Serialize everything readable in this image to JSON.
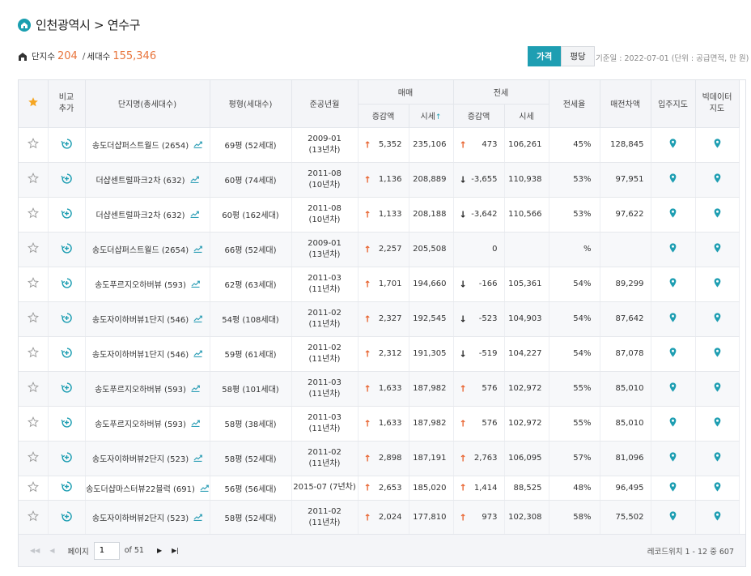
{
  "header": {
    "title": "인천광역시 > 연수구",
    "complex_label": "단지수",
    "complex_count": "204",
    "separator": "/",
    "household_label": "세대수",
    "household_count": "155,346"
  },
  "toggle": {
    "price_label": "가격",
    "pyeong_label": "평당",
    "active": "가격"
  },
  "basis_text": "기준일 : 2022-07-01 (단위 : 공급면적, 만 원)",
  "table": {
    "headers": {
      "compare_1": "비교",
      "compare_2": "추가",
      "name": "단지명(총세대수)",
      "size": "평형(세대수)",
      "completion": "준공년월",
      "sale_group": "매매",
      "lease_group": "전세",
      "sale_change": "증감액",
      "sale_price": "시세",
      "sale_sort_arrow": "↑",
      "lease_change": "증감액",
      "lease_price": "시세",
      "lease_rate": "전세율",
      "gap": "매전차액",
      "move_in_map": "입주지도",
      "bigdata_1": "빅데이터",
      "bigdata_2": "지도"
    },
    "rows": [
      {
        "name": "송도더샵퍼스트월드 (2654)",
        "size": "69평 (52세대)",
        "year": "2009-01",
        "age": "(13년차)",
        "sale_dir": "up",
        "sale_change": "5,352",
        "sale_price": "235,106",
        "lease_dir": "up",
        "lease_change": "473",
        "lease_price": "106,261",
        "rate": "45%",
        "gap": "128,845"
      },
      {
        "name": "더샵센트럴파크2차 (632)",
        "size": "60평 (74세대)",
        "year": "2011-08",
        "age": "(10년차)",
        "sale_dir": "up",
        "sale_change": "1,136",
        "sale_price": "208,889",
        "lease_dir": "down",
        "lease_change": "-3,655",
        "lease_price": "110,938",
        "rate": "53%",
        "gap": "97,951"
      },
      {
        "name": "더샵센트럴파크2차 (632)",
        "size": "60평 (162세대)",
        "year": "2011-08",
        "age": "(10년차)",
        "sale_dir": "up",
        "sale_change": "1,133",
        "sale_price": "208,188",
        "lease_dir": "down",
        "lease_change": "-3,642",
        "lease_price": "110,566",
        "rate": "53%",
        "gap": "97,622"
      },
      {
        "name": "송도더샵퍼스트월드 (2654)",
        "size": "66평 (52세대)",
        "year": "2009-01",
        "age": "(13년차)",
        "sale_dir": "up",
        "sale_change": "2,257",
        "sale_price": "205,508",
        "lease_dir": "",
        "lease_change": "0",
        "lease_price": "",
        "rate": "%",
        "gap": ""
      },
      {
        "name": "송도푸르지오하버뷰 (593)",
        "size": "62평 (63세대)",
        "year": "2011-03",
        "age": "(11년차)",
        "sale_dir": "up",
        "sale_change": "1,701",
        "sale_price": "194,660",
        "lease_dir": "down",
        "lease_change": "-166",
        "lease_price": "105,361",
        "rate": "54%",
        "gap": "89,299"
      },
      {
        "name": "송도자이하버뷰1단지 (546)",
        "size": "54평 (108세대)",
        "year": "2011-02",
        "age": "(11년차)",
        "sale_dir": "up",
        "sale_change": "2,327",
        "sale_price": "192,545",
        "lease_dir": "down",
        "lease_change": "-523",
        "lease_price": "104,903",
        "rate": "54%",
        "gap": "87,642"
      },
      {
        "name": "송도자이하버뷰1단지 (546)",
        "size": "59평 (61세대)",
        "year": "2011-02",
        "age": "(11년차)",
        "sale_dir": "up",
        "sale_change": "2,312",
        "sale_price": "191,305",
        "lease_dir": "down",
        "lease_change": "-519",
        "lease_price": "104,227",
        "rate": "54%",
        "gap": "87,078"
      },
      {
        "name": "송도푸르지오하버뷰 (593)",
        "size": "58평 (101세대)",
        "year": "2011-03",
        "age": "(11년차)",
        "sale_dir": "up",
        "sale_change": "1,633",
        "sale_price": "187,982",
        "lease_dir": "up",
        "lease_change": "576",
        "lease_price": "102,972",
        "rate": "55%",
        "gap": "85,010"
      },
      {
        "name": "송도푸르지오하버뷰 (593)",
        "size": "58평 (38세대)",
        "year": "2011-03",
        "age": "(11년차)",
        "sale_dir": "up",
        "sale_change": "1,633",
        "sale_price": "187,982",
        "lease_dir": "up",
        "lease_change": "576",
        "lease_price": "102,972",
        "rate": "55%",
        "gap": "85,010"
      },
      {
        "name": "송도자이하버뷰2단지 (523)",
        "size": "58평 (52세대)",
        "year": "2011-02",
        "age": "(11년차)",
        "sale_dir": "up",
        "sale_change": "2,898",
        "sale_price": "187,191",
        "lease_dir": "up",
        "lease_change": "2,763",
        "lease_price": "106,095",
        "rate": "57%",
        "gap": "81,096"
      },
      {
        "name": "송도더샵마스터뷰22블럭 (691)",
        "size": "56평 (56세대)",
        "year": "2015-07 (7년차)",
        "age": "",
        "sale_dir": "up",
        "sale_change": "2,653",
        "sale_price": "185,020",
        "lease_dir": "up",
        "lease_change": "1,414",
        "lease_price": "88,525",
        "rate": "48%",
        "gap": "96,495"
      },
      {
        "name": "송도자이하버뷰2단지 (523)",
        "size": "58평 (52세대)",
        "year": "2011-02",
        "age": "(11년차)",
        "sale_dir": "up",
        "sale_change": "2,024",
        "sale_price": "177,810",
        "lease_dir": "up",
        "lease_change": "973",
        "lease_price": "102,308",
        "rate": "58%",
        "gap": "75,502"
      }
    ]
  },
  "pagination": {
    "page_label": "페이지",
    "current_page": "1",
    "of_text": "of 51",
    "records_text": "레코드위치 1 - 12 중 607"
  },
  "colors": {
    "accent": "#1e9eb2",
    "up_arrow": "#e8612c",
    "down_arrow": "#222222",
    "star_active": "#f5a623",
    "highlight_number": "#e8743b"
  },
  "icons": {
    "region": "home-icon",
    "stats": "building-icon",
    "favorite_header": "star-filled-icon",
    "favorite_row": "star-outline-icon",
    "compare": "compare-add-icon",
    "trend": "trend-chart-icon",
    "map": "map-pin-icon"
  }
}
